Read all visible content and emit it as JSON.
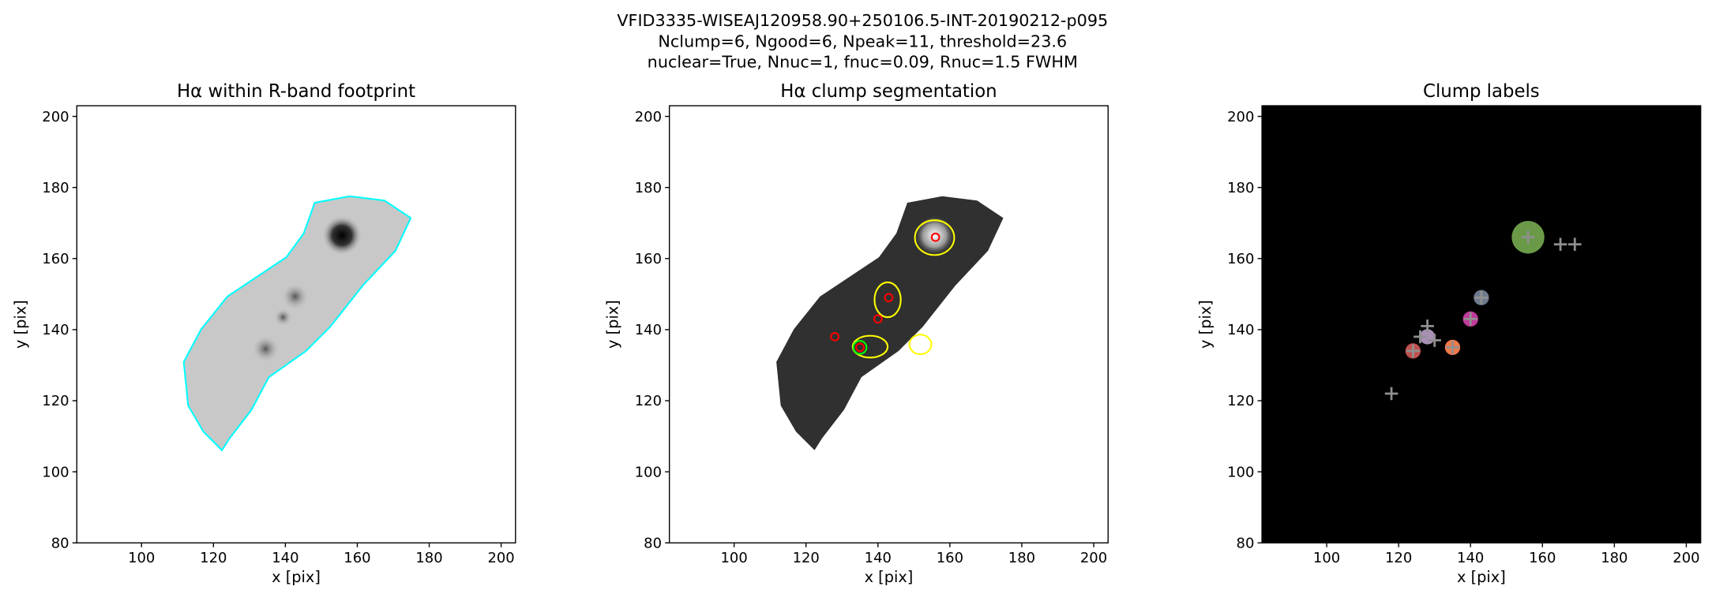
{
  "suptitle": [
    "VFID3335-WISEAJ120958.90+250106.5-INT-20190212-p095",
    "Nclump=6, Ngood=6, Npeak=11, threshold=23.6",
    "nuclear=True, Nnuc=1, fnuc=0.09, Rnuc=1.5 FWHM"
  ],
  "chart_data": [
    {
      "type": "image",
      "title": "Hα within R-band footprint",
      "x_label": "x [pix]",
      "y_label": "y [pix]",
      "xlim": [
        82,
        204
      ],
      "ylim": [
        80,
        203
      ],
      "xticks": [
        100,
        120,
        140,
        160,
        180,
        200
      ],
      "yticks": [
        80,
        100,
        120,
        140,
        160,
        180,
        200
      ],
      "background": "#ffffff"
    },
    {
      "type": "image",
      "title": "Hα clump segmentation",
      "x_label": "x [pix]",
      "y_label": "y [pix]",
      "xlim": [
        82,
        204
      ],
      "ylim": [
        80,
        203
      ],
      "xticks": [
        100,
        120,
        140,
        160,
        180,
        200
      ],
      "yticks": [
        80,
        100,
        120,
        140,
        160,
        180,
        200
      ],
      "background": "#ffffff",
      "markers": [
        {
          "color": "#ff0000",
          "x": [
            156,
            143,
            140,
            128,
            135
          ],
          "y": [
            166,
            149,
            143,
            138,
            135
          ]
        },
        {
          "color": "#00ff00",
          "x": [
            135
          ],
          "y": [
            135
          ]
        }
      ]
    },
    {
      "type": "image",
      "title": "Clump labels",
      "x_label": "x [pix]",
      "y_label": "y [pix]",
      "xlim": [
        82,
        204
      ],
      "ylim": [
        80,
        203
      ],
      "xticks": [
        100,
        120,
        140,
        160,
        180,
        200
      ],
      "yticks": [
        80,
        100,
        120,
        140,
        160,
        180,
        200
      ],
      "background": "#000000",
      "clumps": {
        "x": [
          156,
          143,
          140,
          128,
          135,
          124
        ],
        "y": [
          166,
          149,
          143,
          138,
          135,
          134
        ],
        "colors": [
          "#6a9a48",
          "#6e7a8e",
          "#c03a9a",
          "#a890b4",
          "#f07a4a",
          "#c25050"
        ]
      },
      "peaks": {
        "color": "#909090",
        "x": [
          118,
          128,
          156,
          165,
          169,
          143,
          135,
          124,
          140,
          126,
          130
        ],
        "y": [
          122,
          141,
          166,
          164,
          164,
          149,
          135,
          134,
          143,
          138,
          137
        ]
      }
    }
  ]
}
